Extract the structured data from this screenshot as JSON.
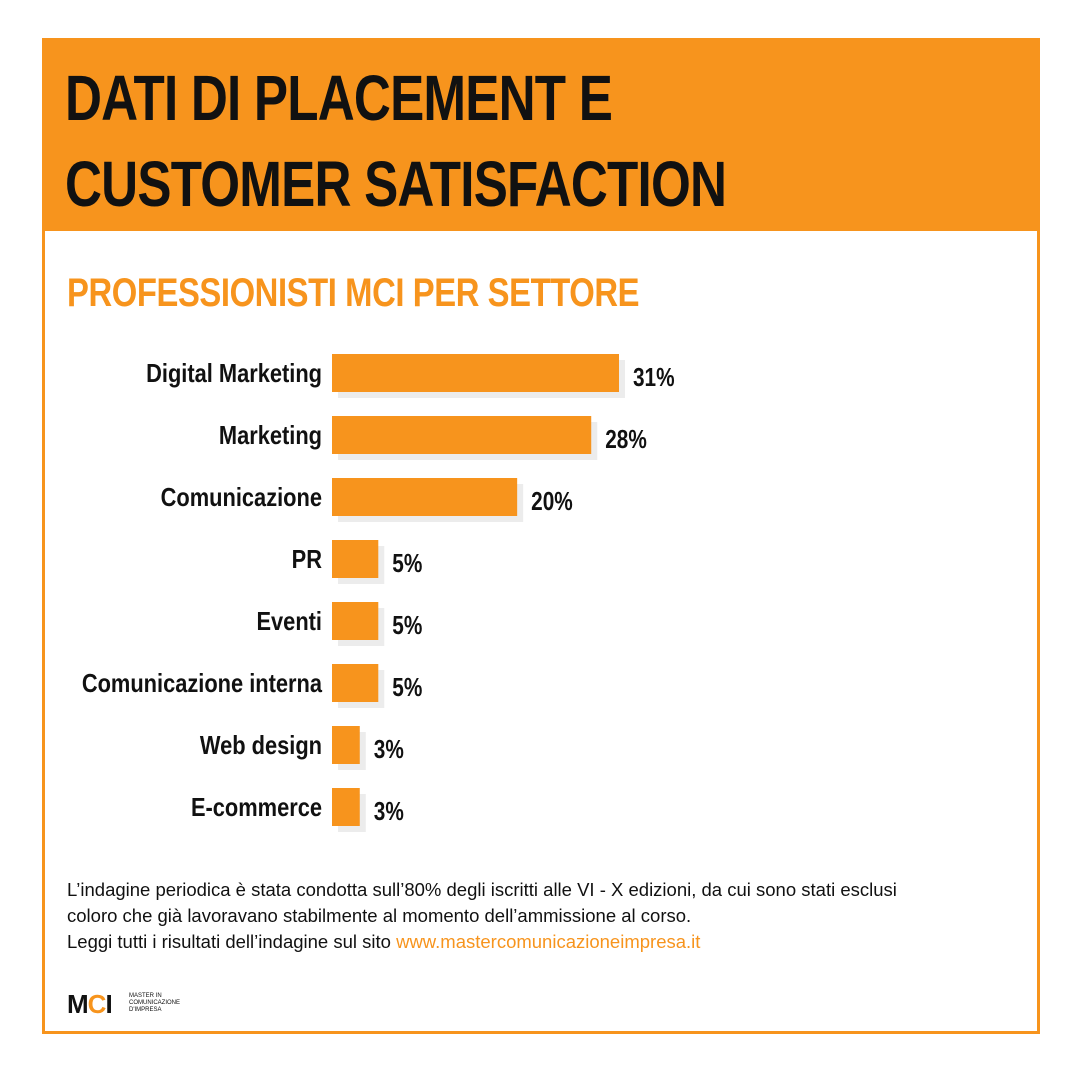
{
  "header": {
    "title_line1": "DATI DI PLACEMENT E",
    "title_line2": "CUSTOMER SATISFACTION"
  },
  "colors": {
    "accent": "#f7941d",
    "shadow": "#ececec",
    "text": "#111111"
  },
  "chart_data": {
    "type": "bar",
    "orientation": "horizontal",
    "title": "PROFESSIONISTI MCI PER SETTORE",
    "categories": [
      "Digital Marketing",
      "Marketing",
      "Comunicazione",
      "PR",
      "Eventi",
      "Comunicazione interna",
      "Web design",
      "E-commerce"
    ],
    "values": [
      31,
      28,
      20,
      5,
      5,
      5,
      3,
      3
    ],
    "value_labels": [
      "31%",
      "28%",
      "20%",
      "5%",
      "5%",
      "5%",
      "3%",
      "3%"
    ],
    "unit": "%",
    "xlim": [
      0,
      31
    ],
    "grid": false,
    "legend": "none"
  },
  "note": {
    "line1": "L’indagine periodica è stata condotta sull’80% degli iscritti alle VI - X edizioni, da cui sono stati esclusi",
    "line2": "coloro che già lavoravano stabilmente al momento dell’ammissione al corso.",
    "line3_prefix": "Leggi tutti i risultati dell’indagine sul sito ",
    "link": "www.mastercomunicazioneimpresa.it"
  },
  "logo": {
    "mark_m": "M",
    "mark_c": "C",
    "mark_i": "I",
    "text": "MASTER IN COMUNICAZIONE D'IMPRESA"
  }
}
